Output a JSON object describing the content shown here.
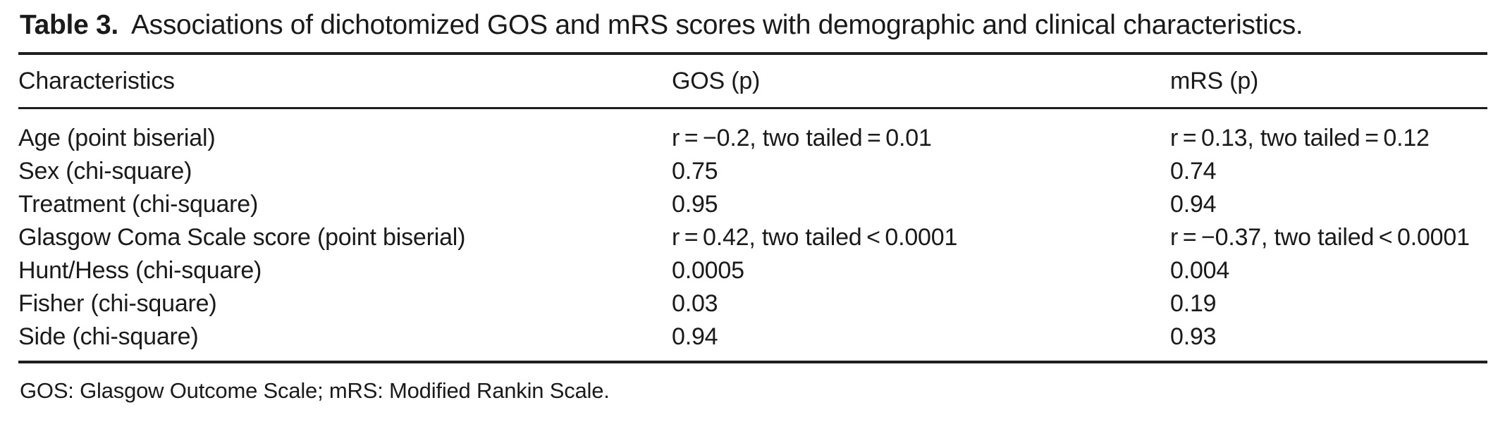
{
  "title": {
    "label": "Table 3.",
    "text": "Associations of dichotomized GOS and mRS scores with demographic and clinical characteristics."
  },
  "table": {
    "columns": [
      "Characteristics",
      "GOS (p)",
      "mRS (p)"
    ],
    "rows": [
      {
        "characteristic": "Age (point biserial)",
        "gos": "r = −0.2, two tailed = 0.01",
        "mrs": "r = 0.13, two tailed = 0.12"
      },
      {
        "characteristic": "Sex (chi-square)",
        "gos": "0.75",
        "mrs": "0.74"
      },
      {
        "characteristic": "Treatment (chi-square)",
        "gos": "0.95",
        "mrs": "0.94"
      },
      {
        "characteristic": "Glasgow Coma Scale score (point biserial)",
        "gos": "r = 0.42, two tailed < 0.0001",
        "mrs": "r = −0.37, two tailed < 0.0001"
      },
      {
        "characteristic": "Hunt/Hess (chi-square)",
        "gos": "0.0005",
        "mrs": "0.004"
      },
      {
        "characteristic": "Fisher (chi-square)",
        "gos": "0.03",
        "mrs": "0.19"
      },
      {
        "characteristic": "Side (chi-square)",
        "gos": "0.94",
        "mrs": "0.93"
      }
    ],
    "footnote": "GOS: Glasgow Outcome Scale; mRS: Modified Rankin Scale."
  },
  "colors": {
    "text": "#1a1a1a",
    "rule": "#1e1e1e",
    "background": "#ffffff"
  }
}
